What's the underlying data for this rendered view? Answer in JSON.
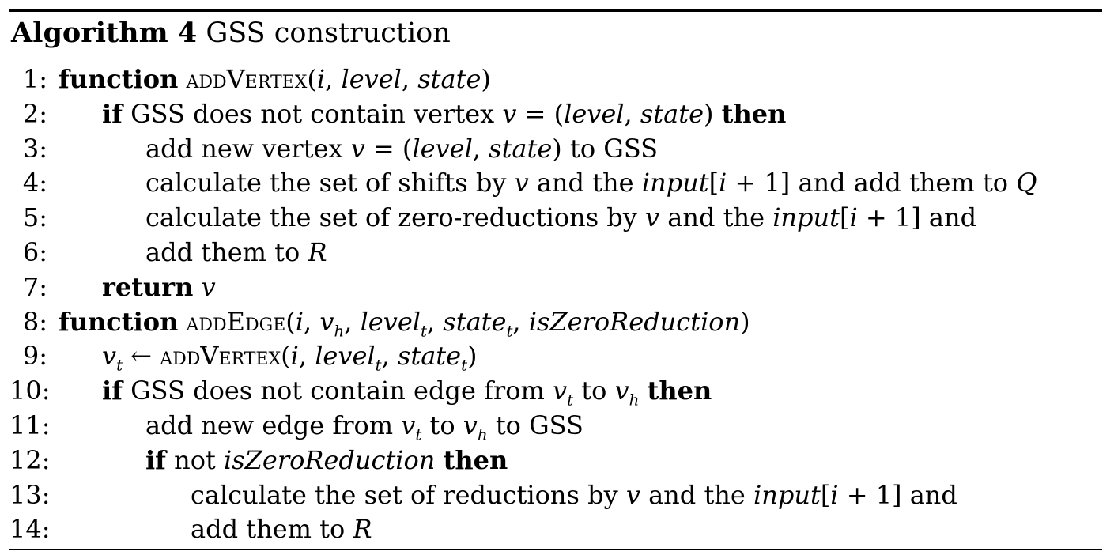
{
  "caption": {
    "label": "Algorithm 4",
    "title": "GSS construction"
  },
  "lines": [
    {
      "num": "1:"
    },
    {
      "num": "2:"
    },
    {
      "num": "3:"
    },
    {
      "num": "4:"
    },
    {
      "num": "5:"
    },
    {
      "num": "6:"
    },
    {
      "num": "7:"
    },
    {
      "num": "8:"
    },
    {
      "num": "9:"
    },
    {
      "num": "10:"
    },
    {
      "num": "11:"
    },
    {
      "num": "12:"
    },
    {
      "num": "13:"
    },
    {
      "num": "14:"
    }
  ],
  "text": {
    "l1": {
      "kw": "function",
      "name": "addVertex",
      "args_open": "(",
      "a1": "i",
      "sep1": ", ",
      "a2": "level",
      "sep2": ", ",
      "a3": "state",
      "args_close": ")"
    },
    "l2": {
      "kw_if": "if",
      "t1": " GSS does not contain vertex ",
      "v": "v",
      "t2": " = (",
      "a": "level",
      "sep": ", ",
      "b": "state",
      "t3": ") ",
      "kw_then": "then"
    },
    "l3": {
      "t1": "add new vertex ",
      "v": "v",
      "t2": " = (",
      "a": "level",
      "sep": ", ",
      "b": "state",
      "t3": ") to GSS"
    },
    "l4": {
      "t1": "calculate the set of shifts by ",
      "v": "v",
      "t2": " and the ",
      "input": "input",
      "t3": "[",
      "i": "i",
      "t4": " + 1] and add them to ",
      "set": "Q"
    },
    "l5": {
      "t1": "calculate the set of zero-reductions by ",
      "v": "v",
      "t2": " and the ",
      "input": "input",
      "t3": "[",
      "i": "i",
      "t4": " + 1] and"
    },
    "l6": {
      "t1": "add them to ",
      "set": "R"
    },
    "l7": {
      "kw": "return",
      "sp": " ",
      "v": "v"
    },
    "l8": {
      "kw": "function",
      "name": "addEdge",
      "args_open": "(",
      "a1": "i",
      "sep1": ", ",
      "a2": "v",
      "a2s": "h",
      "sep2": ", ",
      "a3": "level",
      "a3s": "t",
      "sep3": ", ",
      "a4": "state",
      "a4s": "t",
      "sep4": ", ",
      "a5": "isZeroReduction",
      "args_close": ")"
    },
    "l9": {
      "v": "v",
      "vs": "t",
      "arrow": " ← ",
      "name": "addVertex",
      "args_open": "(",
      "a1": "i",
      "sep1": ", ",
      "a2": "level",
      "a2s": "t",
      "sep2": ", ",
      "a3": "state",
      "a3s": "t",
      "args_close": ")"
    },
    "l10": {
      "kw_if": "if",
      "t1": " GSS does not contain edge from ",
      "v1": "v",
      "v1s": "t",
      "t2": " to ",
      "v2": "v",
      "v2s": "h",
      "t3": " ",
      "kw_then": "then"
    },
    "l11": {
      "t1": "add new edge from ",
      "v1": "v",
      "v1s": "t",
      "t2": " to ",
      "v2": "v",
      "v2s": "h",
      "t3": " to GSS"
    },
    "l12": {
      "kw_if": "if",
      "t1": " not ",
      "flag": "isZeroReduction",
      "t2": " ",
      "kw_then": "then"
    },
    "l13": {
      "t1": "calculate the set of reductions by ",
      "v": "v",
      "t2": " and the ",
      "input": "input",
      "t3": "[",
      "i": "i",
      "t4": " + 1] and"
    },
    "l14": {
      "t1": "add them to ",
      "set": "R"
    }
  }
}
